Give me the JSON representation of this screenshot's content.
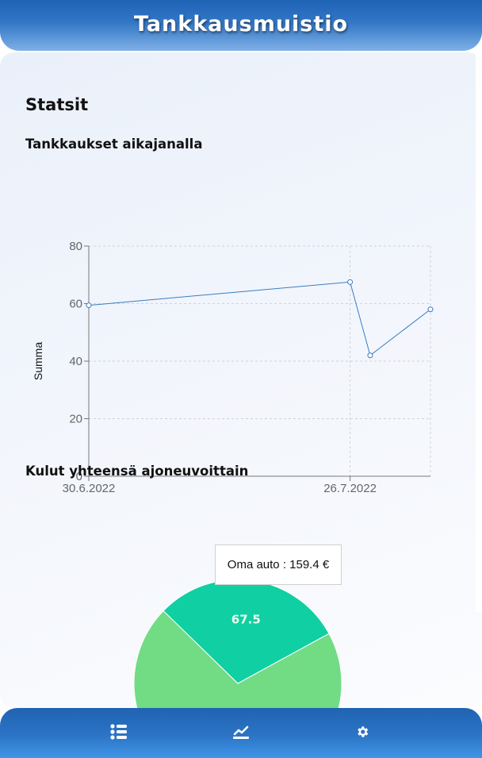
{
  "header": {
    "title": "Tankkausmuistio"
  },
  "page": {
    "title": "Statsit"
  },
  "sections": {
    "timeline_title": "Tankkaukset aikajanalla",
    "totals_title": "Kulut yhteensä ajoneuvoittain"
  },
  "colors": {
    "header_blue": "#1e63b4",
    "line": "#3a7dc2",
    "pie_green": "#72dc84",
    "pie_teal": "#10cfa2"
  },
  "chart_data": [
    {
      "type": "line",
      "title": "",
      "xlabel": "",
      "ylabel": "Summa",
      "x_tick_labels": [
        "30.6.2022",
        "26.7.2022"
      ],
      "y_ticks": [
        "0",
        "20",
        "40",
        "60",
        "80"
      ],
      "ylim": [
        0,
        80
      ],
      "grid": true,
      "series": [
        {
          "x": [
            "30.6.2022",
            "26.7.2022",
            "28.7.2022",
            "3.8.2022"
          ],
          "values": [
            59.4,
            67.5,
            42,
            58
          ]
        }
      ]
    },
    {
      "type": "pie",
      "slices": [
        {
          "label": "159.4",
          "value": 159.4,
          "color": "#72dc84"
        },
        {
          "label": "67.5",
          "value": 67.5,
          "color": "#10cfa2"
        }
      ],
      "tooltip": "Oma auto : 159.4 €"
    }
  ],
  "nav": {
    "list_icon": "list-icon",
    "stats_icon": "chart-line-icon",
    "settings_icon": "gear-icon"
  }
}
